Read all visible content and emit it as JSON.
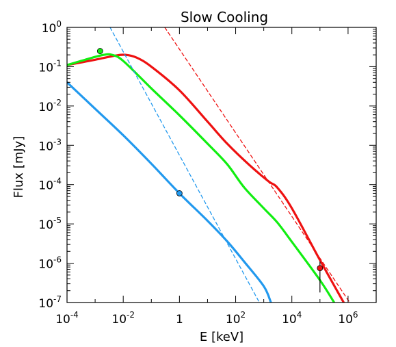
{
  "chart_data": {
    "type": "line",
    "title": "Slow Cooling",
    "xlabel": "E [keV]",
    "ylabel": "Flux [mJy]",
    "x_scale": "log",
    "y_scale": "log",
    "xlim": [
      0.0001,
      10000000
    ],
    "ylim": [
      1e-07,
      1
    ],
    "x_ticks": [
      {
        "value": 0.0001,
        "base": "10",
        "exp": "-4"
      },
      {
        "value": 0.01,
        "base": "10",
        "exp": "-2"
      },
      {
        "value": 1,
        "base": "1",
        "exp": ""
      },
      {
        "value": 100,
        "base": "10",
        "exp": "2"
      },
      {
        "value": 10000,
        "base": "10",
        "exp": "4"
      },
      {
        "value": 1000000,
        "base": "10",
        "exp": "6"
      }
    ],
    "y_ticks": [
      {
        "value": 1,
        "base": "10",
        "exp": "0"
      },
      {
        "value": 0.1,
        "base": "10",
        "exp": "-1"
      },
      {
        "value": 0.01,
        "base": "10",
        "exp": "-2"
      },
      {
        "value": 0.001,
        "base": "10",
        "exp": "-3"
      },
      {
        "value": 0.0001,
        "base": "10",
        "exp": "-4"
      },
      {
        "value": 1e-05,
        "base": "10",
        "exp": "-5"
      },
      {
        "value": 1e-06,
        "base": "10",
        "exp": "-6"
      },
      {
        "value": 1e-07,
        "base": "10",
        "exp": "-7"
      }
    ],
    "grid": false,
    "colors": {
      "red": "#ee1111",
      "green": "#11ee11",
      "blue": "#2299ee"
    },
    "series": [
      {
        "color": "#ee1111",
        "style": "solid",
        "x": [
          0.0001,
          0.001,
          0.005,
          0.012,
          0.03,
          0.1,
          1,
          10,
          50,
          300,
          1500,
          3000,
          10000,
          100000,
          700000
        ],
        "y": [
          0.11,
          0.15,
          0.19,
          0.2,
          0.17,
          0.1,
          0.025,
          0.004,
          0.0011,
          0.00032,
          0.00012,
          8.5e-05,
          2.5e-05,
          1.2e-06,
          1e-07
        ]
      },
      {
        "color": "#11ee11",
        "style": "solid",
        "x": [
          0.0001,
          0.0006,
          0.002,
          0.004,
          0.01,
          0.1,
          1,
          10,
          50,
          200,
          1000,
          3000,
          10000,
          100000,
          320000
        ],
        "y": [
          0.11,
          0.16,
          0.2,
          0.2,
          0.14,
          0.028,
          0.0058,
          0.0011,
          0.00033,
          8.5e-05,
          2.5e-05,
          1.1e-05,
          3.5e-06,
          3.7e-07,
          1e-07
        ]
      },
      {
        "color": "#2299ee",
        "style": "solid",
        "x": [
          0.0001,
          0.001,
          0.01,
          0.1,
          1,
          10,
          50,
          200,
          1000,
          1800
        ],
        "y": [
          0.04,
          0.0085,
          0.0018,
          0.00034,
          6e-05,
          1.2e-05,
          3.6e-06,
          1.1e-06,
          2.6e-07,
          1e-07
        ]
      },
      {
        "color": "#ee1111",
        "style": "dashed",
        "x": [
          0.3,
          10000000
        ],
        "y": [
          1,
          1e-08
        ]
      },
      {
        "color": "#2299ee",
        "style": "dashed",
        "x": [
          0.0034,
          700
        ],
        "y": [
          1,
          1e-07
        ]
      }
    ],
    "points": [
      {
        "x": 0.0015,
        "y": 0.25,
        "color": "#11ee11",
        "yerr_low": null,
        "yerr_high": null
      },
      {
        "x": 1,
        "y": 6e-05,
        "color": "#2299ee",
        "yerr_low": null,
        "yerr_high": null
      },
      {
        "x": 100000,
        "y": 7.5e-07,
        "color": "#ee1111",
        "yerr_low": 1.8e-07,
        "yerr_high": 1.1e-06
      }
    ]
  }
}
